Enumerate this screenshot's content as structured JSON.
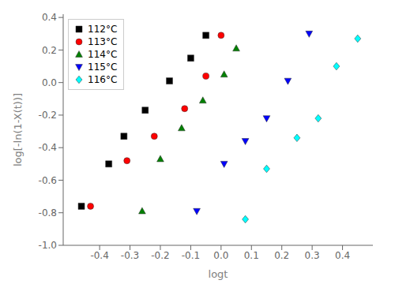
{
  "chart_data": {
    "type": "scatter",
    "xlabel": "logt",
    "ylabel": "log[-ln(1-X(t))]",
    "xlim": [
      -0.52,
      0.5
    ],
    "ylim": [
      -1.0,
      0.42
    ],
    "xticks": [
      -0.4,
      -0.3,
      -0.2,
      -0.1,
      {
        "value": 0.0,
        "label": "0.0"
      },
      0.1,
      0.2,
      0.3,
      0.4
    ],
    "yticks": [
      {
        "value": -1.0,
        "label": "-1.0"
      },
      -0.8,
      -0.6,
      -0.4,
      -0.2,
      {
        "value": 0.0,
        "label": "0.0"
      },
      0.2,
      0.4
    ],
    "grid": false,
    "legend": "upper left",
    "series": [
      {
        "name": "112°C",
        "color": "black",
        "marker": "square",
        "x": [
          -0.46,
          -0.37,
          -0.32,
          -0.25,
          -0.17,
          -0.1,
          -0.05
        ],
        "values": [
          -0.76,
          -0.5,
          -0.33,
          -0.17,
          0.01,
          0.15,
          0.29
        ]
      },
      {
        "name": "113°C",
        "color": "red",
        "marker": "circle",
        "x": [
          -0.43,
          -0.31,
          -0.22,
          -0.12,
          -0.05,
          0.0
        ],
        "values": [
          -0.76,
          -0.48,
          -0.33,
          -0.16,
          0.04,
          0.29
        ]
      },
      {
        "name": "114°C",
        "color": "green",
        "marker": "triangle",
        "x": [
          -0.26,
          -0.2,
          -0.13,
          -0.06,
          0.01,
          0.05
        ],
        "values": [
          -0.79,
          -0.47,
          -0.28,
          -0.11,
          0.05,
          0.21
        ]
      },
      {
        "name": "115°C",
        "color": "blue",
        "marker": "triangle-down",
        "x": [
          -0.08,
          0.01,
          0.08,
          0.15,
          0.22,
          0.29
        ],
        "values": [
          -0.79,
          -0.5,
          -0.36,
          -0.22,
          0.01,
          0.3
        ]
      },
      {
        "name": "116°C",
        "color": "cyan",
        "marker": "diamond",
        "x": [
          0.08,
          0.15,
          0.25,
          0.32,
          0.38,
          0.45
        ],
        "values": [
          -0.84,
          -0.53,
          -0.34,
          -0.22,
          0.1,
          0.27
        ]
      }
    ]
  }
}
